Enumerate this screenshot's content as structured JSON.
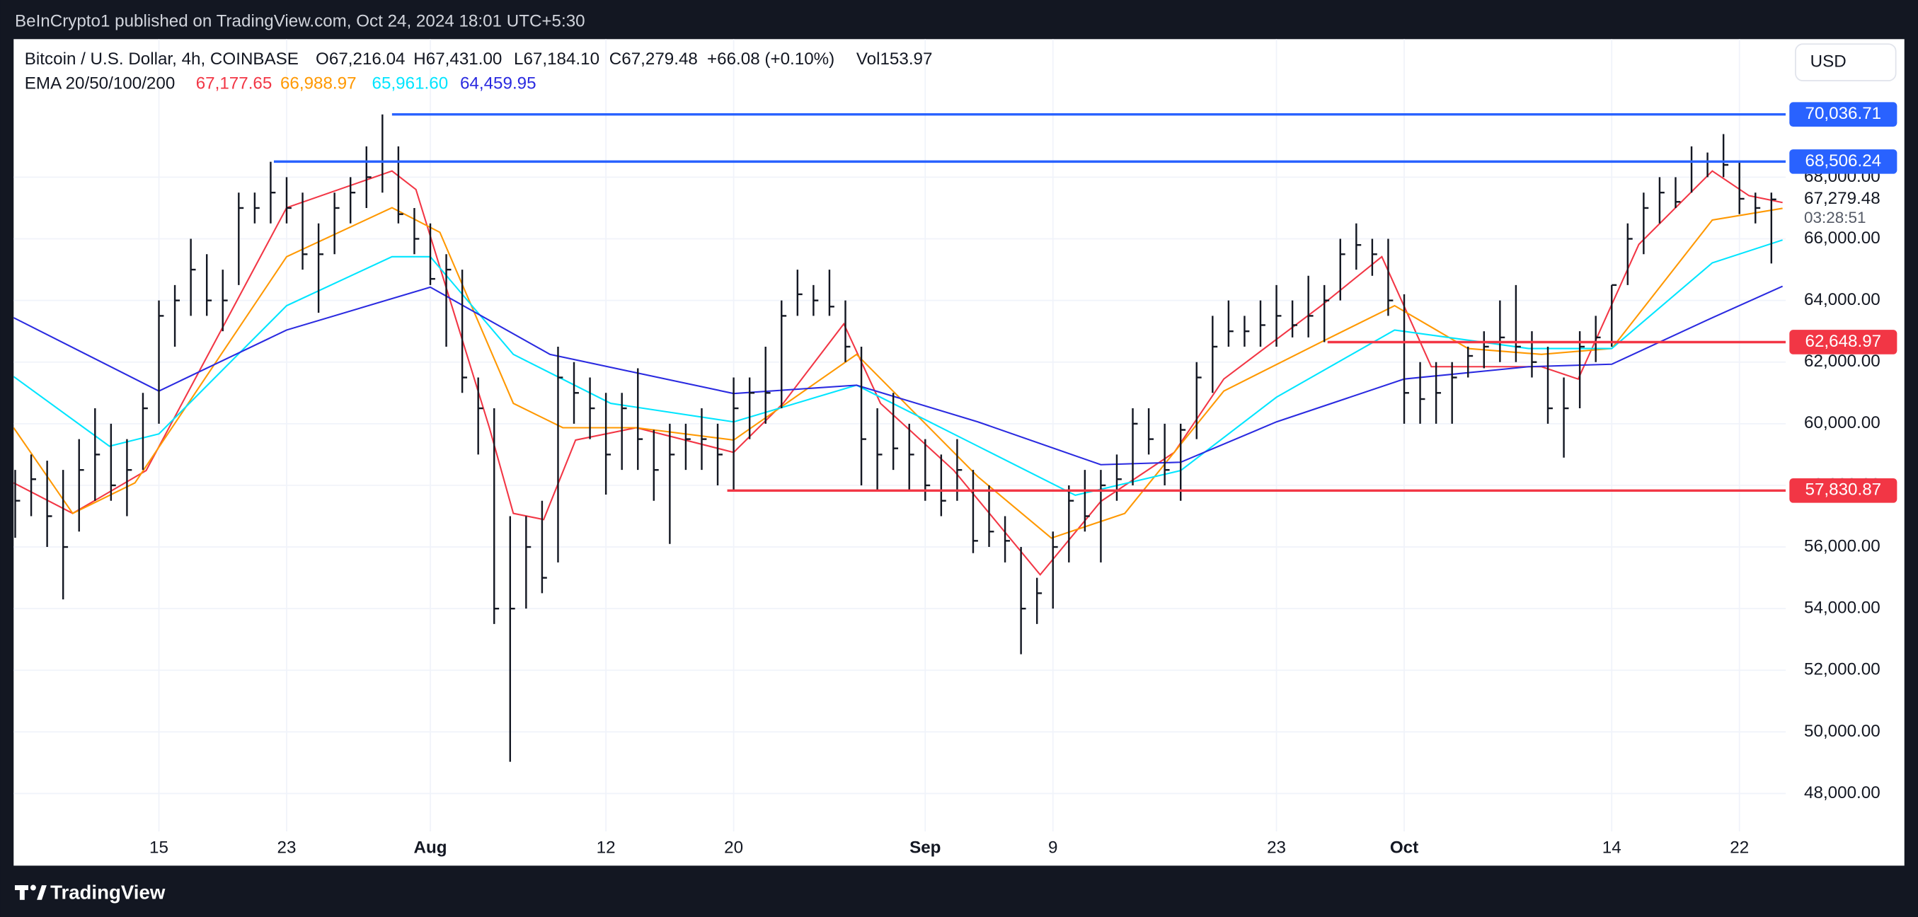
{
  "publish_line": "BeInCrypto1 published on TradingView.com, Oct 24, 2024 18:01 UTC+5:30",
  "footer": "TradingView",
  "chart_data": {
    "type": "ohlc",
    "title": "Bitcoin / U.S. Dollar, 4h, COINBASE",
    "ohlc_legend": [
      "O67,216.04",
      "H67,431.00",
      "L67,184.10",
      "C67,279.48",
      "+66.08 (+0.10%)",
      "Vol153.97"
    ],
    "indicator": "EMA 20/50/100/200",
    "currency": "USD",
    "price_tag": "67,279.48",
    "countdown": "03:28:51",
    "color": "#131722",
    "x": [
      5,
      6,
      7,
      8,
      9,
      10,
      11,
      12,
      13,
      14,
      15,
      16,
      17,
      18,
      19,
      20,
      21,
      22,
      23,
      24,
      25,
      26,
      27,
      28,
      29,
      30,
      31,
      32,
      33,
      34,
      35,
      36,
      37,
      38,
      39,
      40,
      41,
      42,
      43,
      44,
      45,
      46,
      47,
      48,
      49,
      50,
      51,
      52,
      53,
      54,
      55,
      56,
      57,
      58,
      59,
      60,
      61,
      62,
      63,
      64,
      65,
      66,
      67,
      68,
      69,
      70,
      71,
      72,
      73,
      74,
      75,
      76,
      77,
      78,
      79,
      80,
      81,
      82,
      83,
      84,
      85,
      86,
      87,
      88,
      89,
      90,
      91,
      92,
      93,
      94,
      95,
      96,
      97,
      98,
      99,
      100,
      101,
      102,
      103,
      104,
      105,
      106,
      107,
      108,
      109,
      110,
      111,
      112,
      113,
      114,
      115
    ],
    "high": [
      58500,
      59000,
      58800,
      58500,
      59500,
      60500,
      60000,
      59500,
      61000,
      64000,
      64500,
      66000,
      65500,
      65000,
      67500,
      67500,
      68500,
      68000,
      67500,
      66500,
      67500,
      68000,
      69000,
      70036.71,
      69000,
      67000,
      66500,
      65500,
      65000,
      61500,
      60500,
      57000,
      57000,
      57500,
      62500,
      62000,
      61500,
      61000,
      61000,
      61800,
      59800,
      60000,
      60000,
      60500,
      60000,
      61500,
      61500,
      62500,
      64000,
      65000,
      64500,
      65000,
      64000,
      62500,
      60500,
      61000,
      60000,
      59500,
      59000,
      59500,
      58500,
      58000,
      57000,
      56000,
      55000,
      56500,
      58000,
      58500,
      58500,
      59000,
      60500,
      60500,
      60000,
      60000,
      62000,
      63500,
      64000,
      63500,
      64000,
      64500,
      64000,
      64800,
      64500,
      66000,
      66500,
      66000,
      66000,
      64200,
      62000,
      62000,
      62000,
      62500,
      63000,
      64000,
      64500,
      63000,
      62500,
      61500,
      63000,
      63500,
      64500,
      66500,
      67500,
      68000,
      68000,
      69000,
      68800,
      69400,
      68500,
      67500,
      67500
    ],
    "low": [
      56300,
      57000,
      56000,
      54300,
      56500,
      57500,
      57500,
      57000,
      58500,
      60000,
      62500,
      63500,
      63500,
      63000,
      64500,
      66500,
      66500,
      66500,
      65000,
      63600,
      65500,
      66500,
      67000,
      67500,
      66500,
      65500,
      64500,
      62500,
      61000,
      59000,
      53500,
      49030,
      54000,
      54500,
      55500,
      60000,
      59500,
      57700,
      58500,
      58500,
      57500,
      56100,
      58500,
      58500,
      58000,
      57830.87,
      59500,
      60000,
      60500,
      63500,
      63500,
      63500,
      62000,
      58000,
      57800,
      58500,
      57800,
      57500,
      57000,
      57500,
      55800,
      56000,
      55500,
      52520,
      53500,
      54000,
      55500,
      56500,
      55500,
      57500,
      58000,
      59000,
      58000,
      57500,
      59500,
      61000,
      62500,
      62500,
      62500,
      62500,
      62800,
      62800,
      62648.97,
      64000,
      65000,
      64800,
      63500,
      60000,
      60000,
      60000,
      60000,
      61500,
      61800,
      62000,
      62000,
      61500,
      60000,
      58900,
      60500,
      62000,
      62500,
      64500,
      65500,
      66500,
      67000,
      67500,
      68000,
      68000,
      66800,
      66500,
      65200
    ],
    "close": [
      57500,
      58200,
      57000,
      56000,
      58500,
      59000,
      58000,
      58500,
      60500,
      63500,
      64000,
      65000,
      64000,
      64000,
      67000,
      67000,
      67500,
      67000,
      65500,
      65500,
      67000,
      67500,
      68000,
      68500,
      66800,
      66000,
      64700,
      65000,
      61500,
      60500,
      54000,
      54000,
      56000,
      55000,
      61500,
      61000,
      60500,
      59000,
      60500,
      59500,
      58500,
      59000,
      59500,
      59500,
      59000,
      60500,
      61000,
      61000,
      63500,
      64200,
      64000,
      63800,
      62500,
      59500,
      59000,
      59200,
      59000,
      58000,
      57500,
      58500,
      56200,
      56500,
      56200,
      54000,
      54500,
      56000,
      57500,
      57000,
      58000,
      58200,
      60000,
      59500,
      58500,
      59800,
      61500,
      62500,
      63000,
      63000,
      63200,
      63500,
      63200,
      63500,
      64000,
      65500,
      65800,
      65500,
      64000,
      61000,
      60800,
      61000,
      61500,
      62200,
      62500,
      62800,
      62500,
      62000,
      60500,
      60500,
      62500,
      62800,
      64500,
      66000,
      67000,
      67500,
      67200,
      68500,
      68500,
      68400,
      67300,
      67000,
      67279.48
    ],
    "series": [
      {
        "color": "#f23645",
        "last_label": "67,177.65",
        "x": [
          4.9,
          8.6,
          13.2,
          22,
          28.6,
          30.1,
          34.7,
          36.2,
          38.1,
          40.1,
          43.9,
          50,
          53.1,
          56.9,
          59.2,
          63.8,
          69.2,
          73,
          77.6,
          80.7,
          86.8,
          90.6,
          93.7,
          96,
          100.6,
          102.9,
          106.7,
          111.3,
          113.6,
          115.7
        ],
        "values": [
          58080,
          57090,
          58480,
          67010,
          68200,
          67600,
          59870,
          57090,
          56890,
          59470,
          59870,
          59070,
          60660,
          63240,
          60660,
          58480,
          55100,
          57480,
          59070,
          61450,
          63830,
          65420,
          61850,
          61850,
          61850,
          61450,
          65820,
          68200,
          67400,
          67177.65
        ]
      },
      {
        "color": "#ff9800",
        "last_label": "66,988.97",
        "x": [
          4.9,
          8.6,
          12.5,
          22,
          28.6,
          31.6,
          36.2,
          39.3,
          43.9,
          50,
          57.7,
          65.3,
          69.9,
          74.5,
          80.7,
          86.8,
          91.4,
          96,
          100.6,
          105,
          111.3,
          115.7
        ],
        "values": [
          59870,
          57090,
          58080,
          65420,
          67010,
          66210,
          60660,
          59870,
          59870,
          59470,
          62250,
          58280,
          56290,
          57090,
          61060,
          62650,
          63830,
          62440,
          62250,
          62440,
          66610,
          66988.97
        ]
      },
      {
        "color": "#00e5ff",
        "last_label": "65,961.60",
        "x": [
          4.9,
          10.9,
          14,
          22,
          28.6,
          31,
          36.2,
          42.3,
          50,
          57.7,
          65.3,
          71.4,
          78,
          84,
          91.4,
          99.8,
          105,
          111.3,
          115.7
        ],
        "values": [
          61530,
          59270,
          59670,
          63830,
          65420,
          65420,
          62250,
          60660,
          60060,
          61250,
          59270,
          57680,
          58480,
          60860,
          63040,
          62440,
          62440,
          65220,
          65961.6
        ]
      },
      {
        "color": "#2a2ae0",
        "last_label": "64,459.95",
        "x": [
          4.9,
          14,
          22,
          31,
          38.5,
          50,
          57.7,
          65.3,
          73,
          78,
          84,
          92,
          99.8,
          105,
          111.3,
          115.7
        ],
        "values": [
          63440,
          61060,
          63040,
          64430,
          62250,
          60980,
          61250,
          60060,
          58670,
          58750,
          60060,
          61450,
          61850,
          61930,
          63440,
          64459.95
        ]
      }
    ],
    "levels": [
      {
        "value": 70036.71,
        "label": "70,036.71",
        "from": 28.6,
        "color": "#2962ff"
      },
      {
        "value": 68506.24,
        "label": "68,506.24",
        "from": 21.2,
        "color": "#2962ff"
      },
      {
        "value": 62648.97,
        "label": "62,648.97",
        "from": 87.2,
        "color": "#f23645"
      },
      {
        "value": 57830.87,
        "label": "57,830.87",
        "from": 49.6,
        "color": "#f23645"
      }
    ],
    "xlim": [
      4.9,
      115.9
    ],
    "ylim": [
      46770,
      72480
    ],
    "xticks": [
      {
        "value": 14,
        "label": "15"
      },
      {
        "value": 22,
        "label": "23"
      },
      {
        "value": 31,
        "label": "Aug"
      },
      {
        "value": 42,
        "label": "12"
      },
      {
        "value": 50,
        "label": "20"
      },
      {
        "value": 62,
        "label": "Sep"
      },
      {
        "value": 70,
        "label": "9"
      },
      {
        "value": 84,
        "label": "23"
      },
      {
        "value": 92,
        "label": "Oct"
      },
      {
        "value": 105,
        "label": "14"
      },
      {
        "value": 113,
        "label": "22"
      }
    ],
    "yticks": [
      {
        "value": 48000,
        "label": "48,000.00"
      },
      {
        "value": 50000,
        "label": "50,000.00"
      },
      {
        "value": 52000,
        "label": "52,000.00"
      },
      {
        "value": 54000,
        "label": "54,000.00"
      },
      {
        "value": 56000,
        "label": "56,000.00"
      },
      {
        "value": 58000,
        "label": "58,000.00"
      },
      {
        "value": 60000,
        "label": "60,000.00"
      },
      {
        "value": 62000,
        "label": "62,000.00"
      },
      {
        "value": 64000,
        "label": "64,000.00"
      },
      {
        "value": 66000,
        "label": "66,000.00"
      },
      {
        "value": 68000,
        "label": "68,000.00"
      }
    ],
    "grid": true
  }
}
